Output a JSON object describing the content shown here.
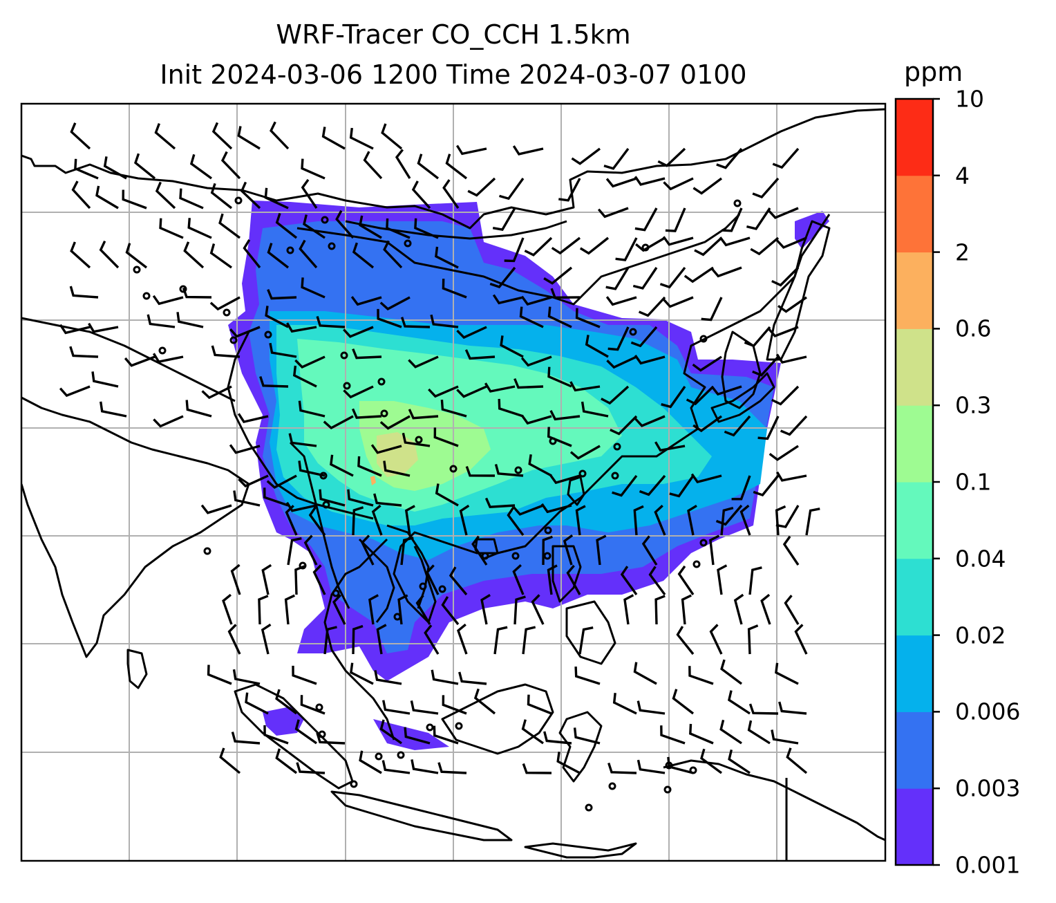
{
  "title": {
    "line1": "WRF-Tracer CO_CCH 1.5km",
    "line2": "Init 2024-03-06 1200 Time 2024-03-07 0100"
  },
  "colorbar": {
    "unit": "ppm",
    "levels": [
      "0.001",
      "0.003",
      "0.006",
      "0.02",
      "0.04",
      "0.1",
      "0.3",
      "0.6",
      "2",
      "4",
      "10"
    ],
    "colors": [
      "#6430fa",
      "#3472f2",
      "#05b1ec",
      "#2ddfd2",
      "#64f9bc",
      "#9efb92",
      "#cfe28a",
      "#fcb05e",
      "#fe7338",
      "#fd2c16"
    ]
  },
  "map": {
    "gridlines": true,
    "coastline_color": "#000000",
    "grid_color": "#b0b0b0",
    "overlay": "wind barbs"
  }
}
